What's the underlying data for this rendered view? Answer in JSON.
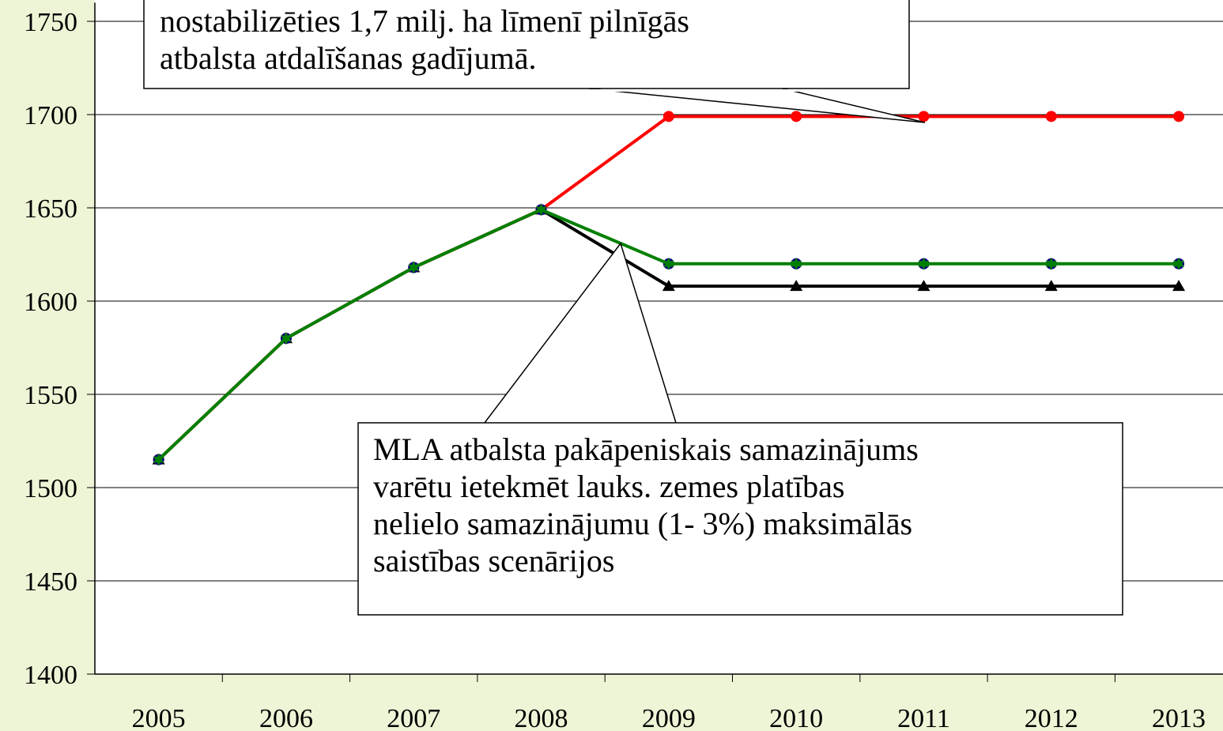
{
  "chart_data": {
    "type": "line",
    "categories": [
      "2005",
      "2006",
      "2007",
      "2008",
      "2009",
      "2010",
      "2011",
      "2012",
      "2013"
    ],
    "series": [
      {
        "color": "#000000",
        "marker": "triangle",
        "values": [
          1515,
          1580,
          1618,
          1649,
          1608,
          1608,
          1608,
          1608,
          1608
        ]
      },
      {
        "color": "#ff0000",
        "marker": "circle",
        "values": [
          1515,
          1580,
          1618,
          1649,
          1699,
          1699,
          1699,
          1699,
          1699
        ]
      },
      {
        "color": "#000080",
        "marker": "circle",
        "values": [
          1515,
          1580,
          1618,
          1649,
          1620,
          1620,
          1620,
          1620,
          1620
        ]
      },
      {
        "color": "#008000",
        "marker": "star",
        "values": [
          1515,
          1580,
          1618,
          1649,
          1620,
          1620,
          1620,
          1620,
          1620
        ]
      }
    ],
    "ylim": [
      1400,
      1760
    ],
    "yticks": [
      1400,
      1450,
      1500,
      1550,
      1600,
      1650,
      1700,
      1750
    ],
    "grid": true,
    "annotations": [
      {
        "lines": [
          "nostabilizēties 1,7 milj. ha līmenī pilnīgās",
          "atbalsta atdalīšanas gadījumā."
        ]
      },
      {
        "lines": [
          "MLA atbalsta pakāpeniskais samazinājums",
          "varētu ietekmēt lauks. zemes platības",
          "nelielo samazinājumu (1- 3%) maksimālās",
          "saistības scenārijos"
        ]
      }
    ]
  }
}
